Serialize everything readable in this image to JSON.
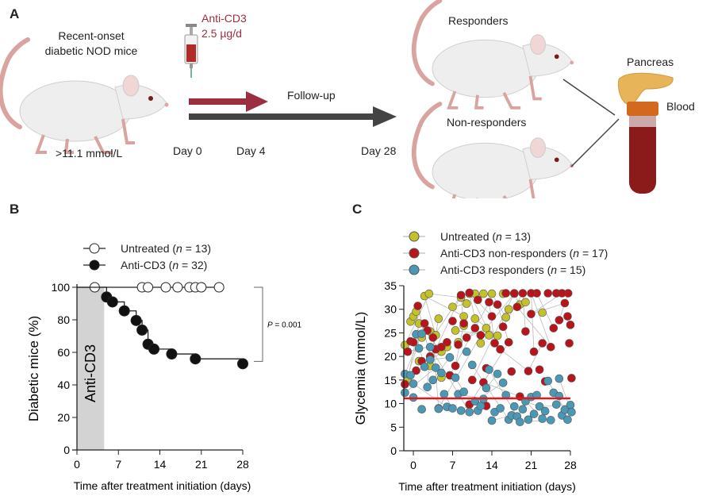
{
  "panel_a": {
    "label": "A",
    "mouse_title_line1": "Recent-onset",
    "mouse_title_line2": "diabetic NOD mice",
    "threshold": ">11.1 mmol/L",
    "drug_line1": "Anti-CD3",
    "drug_line2": "2.5 µg/d",
    "drug_color": "#9b2f3f",
    "followup": "Follow-up",
    "day0": "Day 0",
    "day4": "Day 4",
    "day28": "Day 28",
    "responders": "Responders",
    "non_responders": "Non-responders",
    "pancreas": "Pancreas",
    "blood": "Blood"
  },
  "chart_data": [
    {
      "panel": "B",
      "type": "line",
      "xlabel": "Time after treatment initiation (days)",
      "ylabel": "Diabetic mice (%)",
      "xlim": [
        0,
        28
      ],
      "ylim": [
        0,
        100
      ],
      "xticks": [
        0,
        7,
        14,
        21,
        28
      ],
      "yticks": [
        0,
        20,
        40,
        60,
        80,
        100
      ],
      "shaded_region": {
        "label": "Anti-CD3",
        "x": [
          0,
          4.6
        ],
        "color": "#d3d3d3"
      },
      "annotation": {
        "prefix": "P",
        "text": " = 0.001"
      },
      "legend_placement": "top",
      "series": [
        {
          "name": "Untreated",
          "n": "13",
          "marker": "open-circle",
          "x": [
            0,
            3,
            11,
            12,
            15,
            17,
            19,
            20,
            21,
            24
          ],
          "y": [
            100,
            100,
            100,
            100,
            100,
            100,
            100,
            100,
            100,
            100
          ],
          "censored_x": [
            3,
            11,
            12,
            15,
            17,
            19,
            20,
            21,
            24
          ]
        },
        {
          "name": "Anti-CD3",
          "n": "32",
          "marker": "filled-circle",
          "x": [
            0,
            5,
            6,
            8,
            10,
            11,
            12,
            13,
            16,
            20,
            28
          ],
          "y": [
            100,
            94,
            91,
            85.5,
            79.6,
            73.7,
            65,
            62,
            59,
            56,
            53
          ],
          "censored_x": [
            5,
            6,
            8,
            10,
            11,
            12,
            13,
            16,
            20,
            28
          ]
        }
      ]
    },
    {
      "panel": "C",
      "type": "scatter",
      "xlabel": "Time after treatment initiation (days)",
      "ylabel": "Glycemia (mmol/L)",
      "xlim": [
        -1.7,
        28
      ],
      "ylim": [
        0,
        35
      ],
      "xticks": [
        0,
        7,
        14,
        21,
        28
      ],
      "yticks": [
        0,
        5,
        10,
        15,
        20,
        25,
        30,
        35
      ],
      "threshold": {
        "y": 11.1,
        "color": "#e0191e"
      },
      "legend_placement": "top",
      "series": [
        {
          "name": "Untreated",
          "n": "13",
          "color": "#c4c12a",
          "points": [
            [
              -1.5,
              22.4
            ],
            [
              -0.5,
              27.4
            ],
            [
              0,
              28.5
            ],
            [
              0.5,
              29.5
            ],
            [
              1,
              27
            ],
            [
              1.5,
              24
            ],
            [
              2,
              32.8
            ],
            [
              2.8,
              33.3
            ],
            [
              3,
              25.3
            ],
            [
              4,
              24.5
            ],
            [
              4.5,
              28
            ],
            [
              5,
              21
            ],
            [
              6,
              22
            ],
            [
              7,
              30.5
            ],
            [
              7.5,
              25.5
            ],
            [
              8,
              23
            ],
            [
              8.5,
              32.5
            ],
            [
              9,
              28.5
            ],
            [
              9.5,
              31.2
            ],
            [
              10,
              33.3
            ],
            [
              11,
              28
            ],
            [
              11,
              33.3
            ],
            [
              12,
              22.8
            ],
            [
              12.5,
              33.3
            ],
            [
              13,
              26
            ],
            [
              13.5,
              24.5
            ],
            [
              14,
              33.3
            ],
            [
              15,
              24.4
            ],
            [
              16,
              33.3
            ],
            [
              16.5,
              28.3
            ],
            [
              17,
              30
            ],
            [
              18,
              33.3
            ],
            [
              19,
              31
            ],
            [
              20,
              31.5
            ],
            [
              23,
              29.3
            ],
            [
              -1,
              15
            ],
            [
              1,
              19
            ],
            [
              3,
              18
            ],
            [
              5,
              15.5
            ],
            [
              9,
              26.5
            ]
          ]
        },
        {
          "name": "Anti-CD3 non-responders",
          "n": "17",
          "color": "#b8141b",
          "points": [
            [
              -1.5,
              14.1
            ],
            [
              -1,
              21
            ],
            [
              -0.5,
              23.2
            ],
            [
              0,
              23
            ],
            [
              0.5,
              17
            ],
            [
              0.8,
              30.7
            ],
            [
              1.5,
              19
            ],
            [
              2,
              27
            ],
            [
              2.5,
              25.5
            ],
            [
              3,
              20
            ],
            [
              3.5,
              24
            ],
            [
              4,
              21.5
            ],
            [
              4.5,
              9
            ],
            [
              5,
              22
            ],
            [
              6,
              23
            ],
            [
              6.5,
              16
            ],
            [
              7,
              27.5
            ],
            [
              7.5,
              18
            ],
            [
              8,
              22.5
            ],
            [
              8.5,
              33
            ],
            [
              9,
              27
            ],
            [
              9.5,
              24
            ],
            [
              10,
              33.5
            ],
            [
              10.5,
              15
            ],
            [
              11,
              26
            ],
            [
              11.5,
              32
            ],
            [
              12,
              24.5
            ],
            [
              12.5,
              14.5
            ],
            [
              13,
              17.5
            ],
            [
              13.5,
              31.5
            ],
            [
              14,
              28.5
            ],
            [
              14.5,
              22.8
            ],
            [
              15,
              31
            ],
            [
              15.5,
              21.5
            ],
            [
              16,
              26.3
            ],
            [
              16.5,
              33.4
            ],
            [
              17,
              23
            ],
            [
              17.5,
              16.8
            ],
            [
              18,
              33.4
            ],
            [
              18.5,
              30.5
            ],
            [
              19,
              11.5
            ],
            [
              19.5,
              33.4
            ],
            [
              20,
              25.3
            ],
            [
              20.5,
              16.9
            ],
            [
              21,
              29
            ],
            [
              21.5,
              21
            ],
            [
              22,
              33.4
            ],
            [
              22.5,
              17.2
            ],
            [
              23,
              22.8
            ],
            [
              23.5,
              14.7
            ],
            [
              24,
              33.4
            ],
            [
              24.5,
              22
            ],
            [
              25,
              26
            ],
            [
              25.5,
              33.4
            ],
            [
              26,
              27.7
            ],
            [
              27,
              31.3
            ],
            [
              27.5,
              28.5
            ],
            [
              27.8,
              22.8
            ],
            [
              28,
              26.7
            ],
            [
              28.2,
              15.4
            ],
            [
              27.6,
              33.4
            ],
            [
              26.5,
              33.4
            ],
            [
              21,
              33.4
            ],
            [
              13,
              9.5
            ],
            [
              10,
              9.8
            ]
          ]
        },
        {
          "name": "Anti-CD3 responders",
          "n": "15",
          "color": "#4b98b5",
          "points": [
            [
              -1.5,
              16.3
            ],
            [
              -1.5,
              12.3
            ],
            [
              -0.5,
              16
            ],
            [
              0,
              14.2
            ],
            [
              0,
              11.3
            ],
            [
              0.5,
              24.7
            ],
            [
              1,
              21.7
            ],
            [
              1.5,
              24.8
            ],
            [
              1.5,
              8.8
            ],
            [
              2,
              17.8
            ],
            [
              2.5,
              13.5
            ],
            [
              3,
              19.3
            ],
            [
              3,
              22
            ],
            [
              3.5,
              15
            ],
            [
              4,
              17.6
            ],
            [
              4.5,
              8.9
            ],
            [
              5,
              16.5
            ],
            [
              5.5,
              12
            ],
            [
              6,
              9.3
            ],
            [
              6.5,
              19.8
            ],
            [
              7,
              9
            ],
            [
              7.5,
              15.5
            ],
            [
              8,
              12
            ],
            [
              8.5,
              8.5
            ],
            [
              9,
              12.5
            ],
            [
              9.5,
              21
            ],
            [
              10,
              8.2
            ],
            [
              10.5,
              18.2
            ],
            [
              11,
              10.5
            ],
            [
              11.5,
              8.5
            ],
            [
              12,
              9.5
            ],
            [
              12.5,
              11
            ],
            [
              13,
              13.3
            ],
            [
              13.5,
              17.2
            ],
            [
              14,
              6.4
            ],
            [
              14.5,
              8.2
            ],
            [
              15,
              16.3
            ],
            [
              15.5,
              9
            ],
            [
              16,
              14.4
            ],
            [
              16.5,
              11.8
            ],
            [
              17,
              6.6
            ],
            [
              17.5,
              7.5
            ],
            [
              18,
              9.4
            ],
            [
              18.5,
              7.3
            ],
            [
              19,
              6.1
            ],
            [
              19.5,
              8.8
            ],
            [
              20,
              10.5
            ],
            [
              20.5,
              6.6
            ],
            [
              21,
              11.4
            ],
            [
              21.5,
              7.8
            ],
            [
              22,
              11.8
            ],
            [
              22.5,
              9.4
            ],
            [
              23,
              6.8
            ],
            [
              23.5,
              8.4
            ],
            [
              24,
              14.8
            ],
            [
              24.5,
              6.5
            ],
            [
              25,
              12.3
            ],
            [
              25.5,
              9.8
            ],
            [
              26,
              15.3
            ],
            [
              26.5,
              7.5
            ],
            [
              27,
              8.7
            ],
            [
              27.5,
              6.6
            ],
            [
              28,
              9.7
            ],
            [
              28.2,
              8.2
            ],
            [
              26,
              11.6
            ]
          ]
        }
      ]
    }
  ]
}
